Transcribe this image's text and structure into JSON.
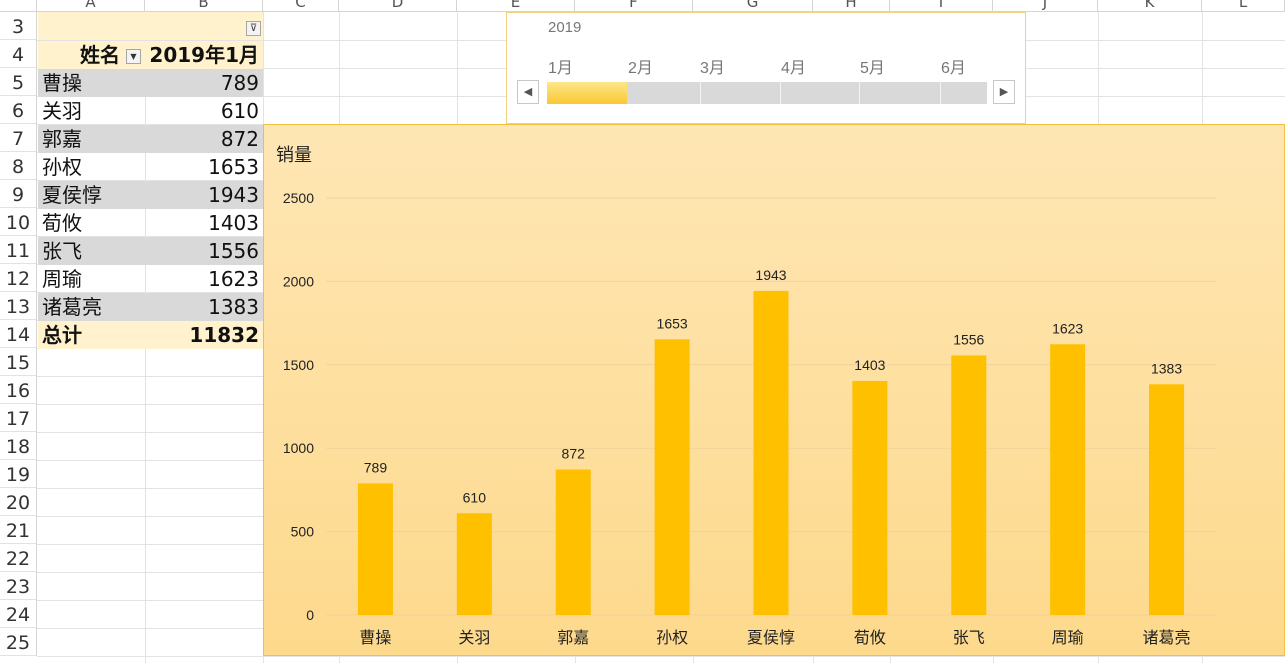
{
  "columns": [
    "A",
    "B",
    "C",
    "D",
    "E",
    "F",
    "G",
    "H",
    "I",
    "J",
    "K",
    "L"
  ],
  "rows": [
    "3",
    "4",
    "5",
    "6",
    "7",
    "8",
    "9",
    "10",
    "11",
    "12",
    "13",
    "14",
    "15",
    "16",
    "17",
    "18",
    "19",
    "20",
    "21",
    "22",
    "23",
    "24",
    "25"
  ],
  "pivot": {
    "header_name": "姓名",
    "header_value": "2019年1月",
    "filter_icon": "funnel-icon",
    "dropdown_icon": "dropdown-arrow-icon",
    "rows": [
      {
        "name": "曹操",
        "value": "789"
      },
      {
        "name": "关羽",
        "value": "610"
      },
      {
        "name": "郭嘉",
        "value": "872"
      },
      {
        "name": "孙权",
        "value": "1653"
      },
      {
        "name": "夏侯惇",
        "value": "1943"
      },
      {
        "name": "荀攸",
        "value": "1403"
      },
      {
        "name": "张飞",
        "value": "1556"
      },
      {
        "name": "周瑜",
        "value": "1623"
      },
      {
        "name": "诸葛亮",
        "value": "1383"
      }
    ],
    "total_label": "总计",
    "total_value": "11832"
  },
  "timeline": {
    "year": "2019",
    "months": [
      "1月",
      "2月",
      "3月",
      "4月",
      "5月",
      "6月"
    ],
    "selected_month": "1月",
    "left_arrow": "◀",
    "right_arrow": "▶"
  },
  "chart_data": {
    "type": "bar",
    "ylabel": "销量",
    "categories": [
      "曹操",
      "关羽",
      "郭嘉",
      "孙权",
      "夏侯惇",
      "荀攸",
      "张飞",
      "周瑜",
      "诸葛亮"
    ],
    "values": [
      789,
      610,
      872,
      1653,
      1943,
      1403,
      1556,
      1623,
      1383
    ],
    "ylim": [
      0,
      2500
    ],
    "yticks": [
      0,
      500,
      1000,
      1500,
      2000,
      2500
    ],
    "grid": true,
    "bar_color": "#ffc000",
    "data_labels": true
  }
}
